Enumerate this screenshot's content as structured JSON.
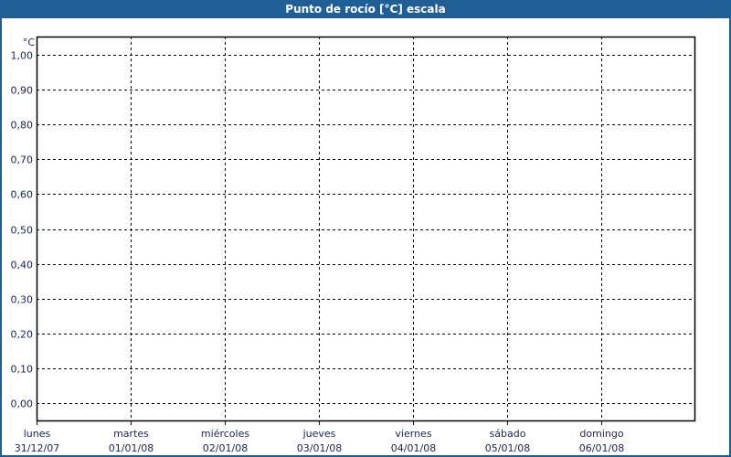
{
  "window": {
    "title": "Punto de rocío [°C] escala",
    "accent": "#1f5f96"
  },
  "chart_data": {
    "type": "line",
    "title": "Punto de rocío [°C] escala",
    "ylabel": "°C",
    "ylim": [
      0,
      1
    ],
    "yticks": [
      "0,00",
      "0,10",
      "0,20",
      "0,30",
      "0,40",
      "0,50",
      "0,60",
      "0,70",
      "0,80",
      "0,90",
      "1,00"
    ],
    "categories": [
      {
        "day": "lunes",
        "date": "31/12/07"
      },
      {
        "day": "martes",
        "date": "01/01/08"
      },
      {
        "day": "miércoles",
        "date": "02/01/08"
      },
      {
        "day": "jueves",
        "date": "03/01/08"
      },
      {
        "day": "viernes",
        "date": "04/01/08"
      },
      {
        "day": "sábado",
        "date": "05/01/08"
      },
      {
        "day": "domingo",
        "date": "06/01/08"
      }
    ],
    "grid": true,
    "series": []
  }
}
